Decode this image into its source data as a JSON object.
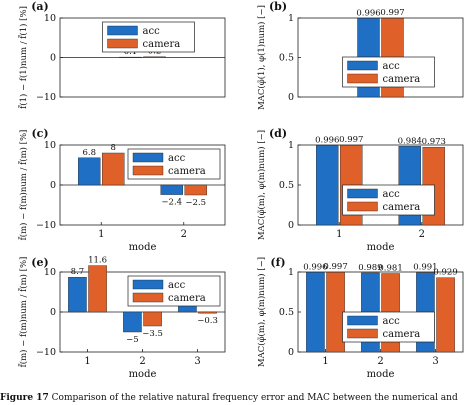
{
  "colors": {
    "acc": "#1f6fc4",
    "camera": "#e0602a"
  },
  "caption": {
    "label": "Figure 17",
    "text": "Comparison of the relative natural frequency error and MAC between the numerical and"
  },
  "chart_data": [
    {
      "panel": "(a)",
      "type": "bar",
      "ylabel_left": "f̃(1) − f(1)num / f̃(1)",
      "ylabel_unit": "[%]",
      "xlabel": "",
      "categories": [
        ""
      ],
      "series": [
        {
          "name": "acc",
          "values": [
            0.1
          ]
        },
        {
          "name": "camera",
          "values": [
            0.2
          ]
        }
      ],
      "data_labels": [
        [
          "0.1"
        ],
        [
          "0.2"
        ]
      ],
      "ylim": [
        -10,
        10
      ],
      "yticks": [
        -10,
        0,
        10
      ],
      "legend": "top-center",
      "grid": false
    },
    {
      "panel": "(b)",
      "type": "bar",
      "ylabel_left": "MAC(φ̃(1), φ(1)num)",
      "ylabel_unit": "[−]",
      "xlabel": "",
      "categories": [
        ""
      ],
      "series": [
        {
          "name": "acc",
          "values": [
            0.996
          ]
        },
        {
          "name": "camera",
          "values": [
            0.997
          ]
        }
      ],
      "data_labels": [
        [
          "0.996"
        ],
        [
          "0.997"
        ]
      ],
      "ylim": [
        0,
        1
      ],
      "yticks": [
        0,
        0.5,
        1
      ],
      "legend": "bottom-center",
      "grid": false
    },
    {
      "panel": "(c)",
      "type": "bar",
      "ylabel_left": "f̃(m) − f(m)num / f̃(m)",
      "ylabel_unit": "[%]",
      "xlabel": "mode",
      "categories": [
        "1",
        "2"
      ],
      "series": [
        {
          "name": "acc",
          "values": [
            6.8,
            -2.4
          ]
        },
        {
          "name": "camera",
          "values": [
            8,
            -2.5
          ]
        }
      ],
      "data_labels": [
        [
          "6.8",
          "−2.4"
        ],
        [
          "8",
          "−2.5"
        ]
      ],
      "ylim": [
        -10,
        10
      ],
      "yticks": [
        -10,
        0,
        10
      ],
      "legend": "top-right",
      "grid": false
    },
    {
      "panel": "(d)",
      "type": "bar",
      "ylabel_left": "MAC(φ̃(m), φ(m)num)",
      "ylabel_unit": "[−]",
      "xlabel": "mode",
      "categories": [
        "1",
        "2"
      ],
      "series": [
        {
          "name": "acc",
          "values": [
            0.996,
            0.984
          ]
        },
        {
          "name": "camera",
          "values": [
            0.997,
            0.973
          ]
        }
      ],
      "data_labels": [
        [
          "0.996",
          "0.984"
        ],
        [
          "0.997",
          "0.973"
        ]
      ],
      "ylim": [
        0,
        1
      ],
      "yticks": [
        0,
        0.5,
        1
      ],
      "legend": "bottom-center",
      "grid": false
    },
    {
      "panel": "(e)",
      "type": "bar",
      "ylabel_left": "f̃(m) − f(m)num / f̃(m)",
      "ylabel_unit": "[%]",
      "xlabel": "mode",
      "categories": [
        "1",
        "2",
        "3"
      ],
      "series": [
        {
          "name": "acc",
          "values": [
            8.7,
            -5,
            1.7
          ]
        },
        {
          "name": "camera",
          "values": [
            11.6,
            -3.5,
            -0.3
          ]
        }
      ],
      "data_labels": [
        [
          "8.7",
          "−5",
          "1.7"
        ],
        [
          "11.6",
          "−3.5",
          "−0.3"
        ]
      ],
      "ylim": [
        -10,
        10
      ],
      "yticks": [
        -10,
        0,
        10
      ],
      "legend": "top-right",
      "grid": false
    },
    {
      "panel": "(f)",
      "type": "bar",
      "ylabel_left": "MAC(φ̃(m), φ(m)num)",
      "ylabel_unit": "[−]",
      "xlabel": "mode",
      "categories": [
        "1",
        "2",
        "3"
      ],
      "series": [
        {
          "name": "acc",
          "values": [
            0.996,
            0.989,
            0.991
          ]
        },
        {
          "name": "camera",
          "values": [
            0.997,
            0.981,
            0.929
          ]
        }
      ],
      "data_labels": [
        [
          "0.996",
          "0.989",
          "0.991"
        ],
        [
          "0.997",
          "0.981",
          "0.929"
        ]
      ],
      "ylim": [
        0,
        1
      ],
      "yticks": [
        0,
        0.5,
        1
      ],
      "legend": "bottom-center",
      "grid": false
    }
  ]
}
